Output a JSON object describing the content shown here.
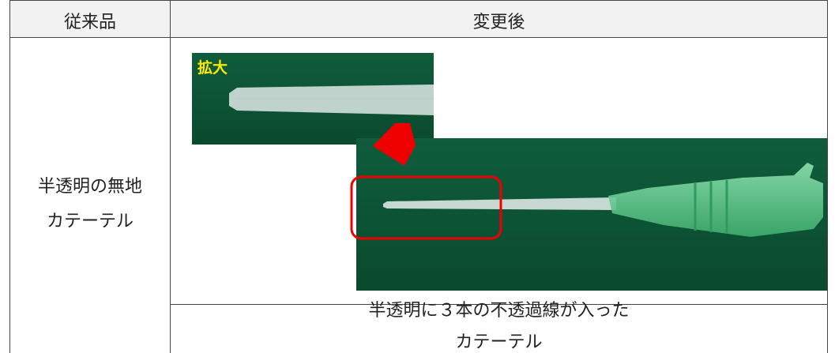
{
  "table": {
    "header": [
      "従来品",
      "変更後"
    ],
    "before": [
      "半透明の無地",
      "カテーテル"
    ],
    "photo_label": "拡大",
    "after": [
      "半透明に３本の不透過線が入った",
      "カテーテル"
    ]
  }
}
